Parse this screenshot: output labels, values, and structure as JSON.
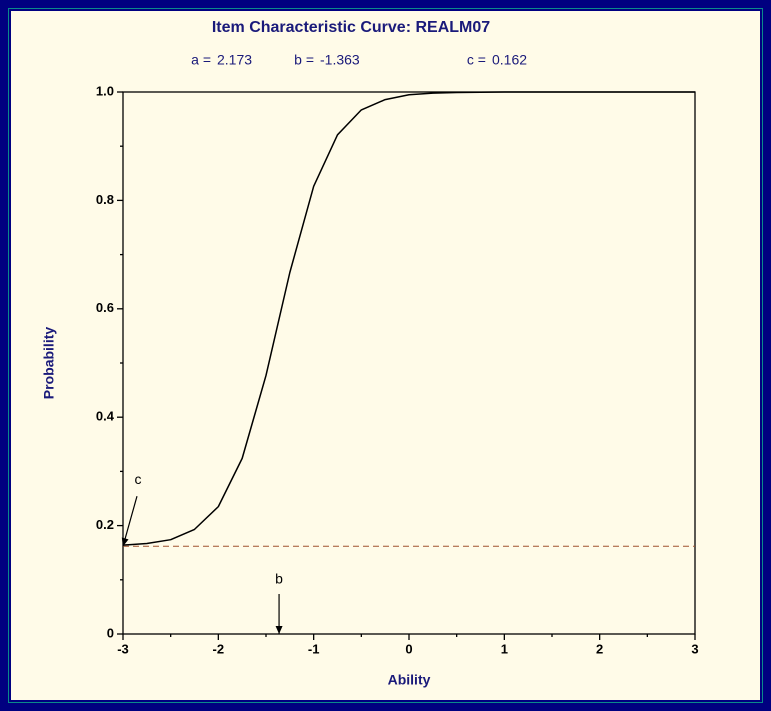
{
  "chart_data": {
    "type": "line",
    "title": "Item Characteristic Curve: REALM07",
    "params": [
      {
        "label": "a =",
        "value": 2.173
      },
      {
        "label": "b =",
        "value": -1.363
      },
      {
        "label": "c =",
        "value": 0.162
      }
    ],
    "xlabel": "Ability",
    "ylabel": "Probability",
    "annotations": [
      "c",
      "b"
    ],
    "x": [
      -3,
      -2.75,
      -2.5,
      -2.25,
      -2,
      -1.75,
      -1.5,
      -1.25,
      -1,
      -0.75,
      -0.5,
      -0.25,
      0,
      0.25,
      0.5,
      1,
      2,
      3
    ],
    "values": [
      0.164,
      0.167,
      0.174,
      0.193,
      0.235,
      0.324,
      0.477,
      0.667,
      0.826,
      0.921,
      0.967,
      0.986,
      0.995,
      0.998,
      0.999,
      1,
      1,
      1
    ],
    "color": "#000000",
    "guide_color": "#a0522d",
    "xlim": [
      -3,
      3
    ],
    "ylim": [
      0,
      1
    ],
    "xticks": [
      -3,
      -2,
      -1,
      0,
      1,
      2,
      3
    ],
    "xminorticks": [
      -2.5,
      -1.5,
      -0.5,
      0.5,
      1.5,
      2.5
    ],
    "yticks": [
      0,
      0.2,
      0.4,
      0.6,
      0.8,
      {
        "value": 1,
        "label": "1.0"
      }
    ],
    "yminorticks": [
      0.1,
      0.3,
      0.5,
      0.7,
      0.9
    ]
  }
}
